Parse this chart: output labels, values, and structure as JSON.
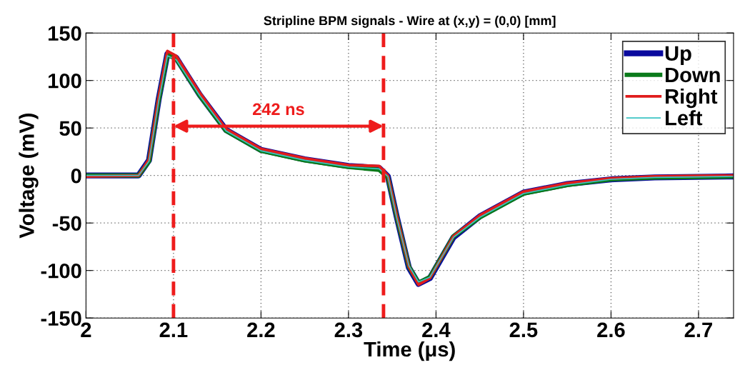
{
  "chart_data": {
    "type": "line",
    "title": "Stripline BPM signals - Wire at (x,y) = (0,0) [mm]",
    "xlabel": "Time (μs)",
    "ylabel": "Voltage (mV)",
    "x": [
      2.0,
      2.06,
      2.072,
      2.083,
      2.093,
      2.103,
      2.13,
      2.16,
      2.2,
      2.25,
      2.3,
      2.335,
      2.345,
      2.355,
      2.369,
      2.38,
      2.393,
      2.42,
      2.45,
      2.5,
      2.55,
      2.6,
      2.65,
      2.74
    ],
    "series": [
      {
        "name": "Up",
        "color": "#0a0a9e",
        "values": [
          0,
          0,
          16,
          80,
          128,
          124,
          85,
          48,
          27,
          17,
          10,
          8,
          -1,
          -43,
          -97,
          -114,
          -108,
          -65,
          -43,
          -18,
          -9,
          -4,
          -2,
          -1
        ]
      },
      {
        "name": "Down",
        "color": "#0a7a1a",
        "values": [
          0,
          0,
          15,
          79,
          127,
          123,
          84,
          47,
          26,
          16,
          9,
          6,
          -2,
          -43,
          -96,
          -113,
          -107,
          -64,
          -44,
          -19,
          -10,
          -4,
          -2,
          -1
        ]
      },
      {
        "name": "Right",
        "color": "#e01c1c",
        "values": [
          -1,
          0,
          17,
          82,
          131,
          126,
          87,
          49,
          28,
          18,
          11,
          10,
          0,
          -42,
          -96,
          -115,
          -108,
          -64,
          -42,
          -17,
          -8,
          -3,
          -1,
          0
        ]
      },
      {
        "name": "Left",
        "color": "#3cc4c4",
        "values": [
          0,
          0,
          15,
          78,
          126,
          122,
          84,
          47,
          26,
          16,
          9,
          7,
          -1,
          -44,
          -95,
          -112,
          -107,
          -65,
          -44,
          -19,
          -10,
          -4,
          -2,
          -1
        ]
      }
    ],
    "xlim": [
      2,
      2.74
    ],
    "xticks": [
      2,
      2.1,
      2.2,
      2.3,
      2.4,
      2.5,
      2.6,
      2.7
    ],
    "ylim": [
      -150,
      150
    ],
    "yticks": [
      -150,
      -100,
      -50,
      0,
      50,
      100,
      150
    ],
    "ref_lines": [
      {
        "axis": "x",
        "value": 2.1,
        "color": "#ee1c1c",
        "line_style": "dashed"
      },
      {
        "axis": "x",
        "value": 2.34,
        "color": "#ee1c1c",
        "line_style": "dashed"
      }
    ],
    "annotations": [
      "242 ns"
    ],
    "grid": true,
    "legend": "top right",
    "line_style": "solid",
    "marker": "none"
  }
}
